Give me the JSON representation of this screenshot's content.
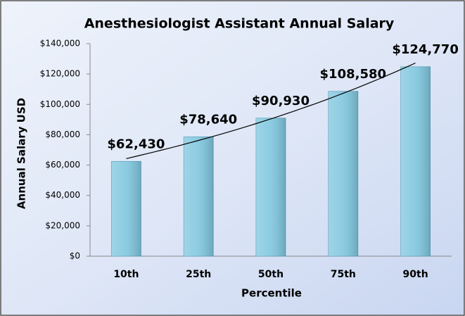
{
  "chart_data": {
    "type": "bar",
    "title": "Anesthesiologist Assistant Annual Salary",
    "x_label": "Percentile",
    "y_label": "Annual Salary USD",
    "categories": [
      "10th",
      "25th",
      "50th",
      "75th",
      "90th"
    ],
    "values": [
      62430,
      78640,
      90930,
      108580,
      124770
    ],
    "value_labels": [
      "$62,430",
      "$78,640",
      "$90,930",
      "$108,580",
      "$124,770"
    ],
    "color": "#7fc6de",
    "ylim": [
      0,
      140000
    ],
    "yticks": [
      {
        "value": 0,
        "label": "$0"
      },
      {
        "value": 20000,
        "label": "$20,000"
      },
      {
        "value": 40000,
        "label": "$40,000"
      },
      {
        "value": 60000,
        "label": "$60,000"
      },
      {
        "value": 80000,
        "label": "$80,000"
      },
      {
        "value": 100000,
        "label": "$100,000"
      },
      {
        "value": 120000,
        "label": "$120,000"
      },
      {
        "value": 140000,
        "label": "$140,000"
      }
    ],
    "grid": false,
    "trendline": "exponential"
  }
}
